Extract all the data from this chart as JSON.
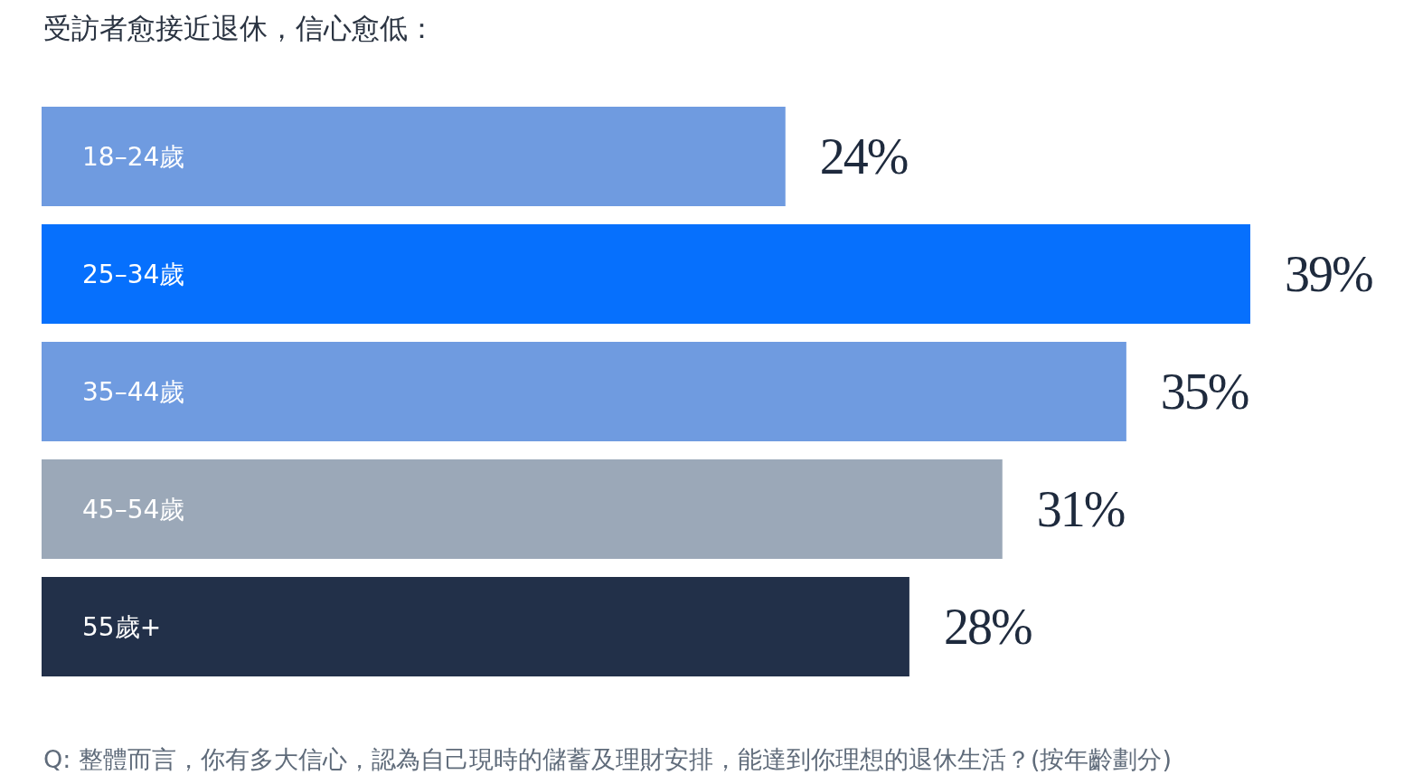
{
  "chart_data": {
    "type": "bar",
    "orientation": "horizontal",
    "title": "受訪者愈接近退休，信心愈低：",
    "categories": [
      "18–24歲",
      "25–34歲",
      "35–44歲",
      "45–54歲",
      "55歲+"
    ],
    "values": [
      24,
      39,
      35,
      31,
      28
    ],
    "value_labels": [
      "24%",
      "39%",
      "35%",
      "31%",
      "28%"
    ],
    "colors": [
      "#6f9be0",
      "#0670fd",
      "#6f9be0",
      "#9ba8b8",
      "#223049"
    ],
    "annotations": [
      "Q: 整體而言，你有多大信心，認為自己現時的儲蓄及理財安排，能達到你理想的退休生活？(按年齡劃分)"
    ]
  }
}
